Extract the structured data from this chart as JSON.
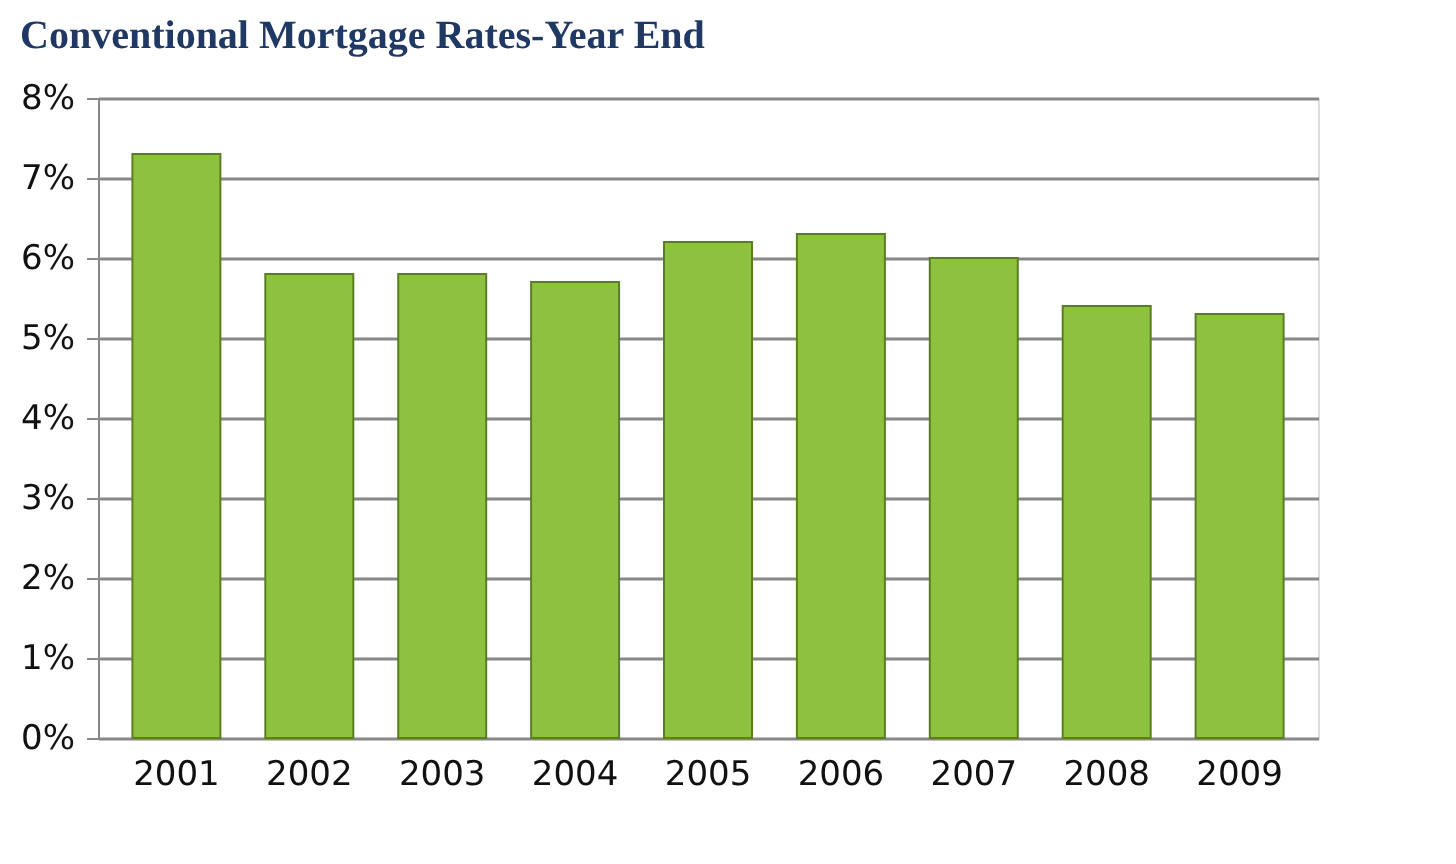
{
  "chart_data": {
    "type": "bar",
    "title": "Conventional Mortgage Rates-Year End",
    "categories": [
      "2001",
      "2002",
      "2003",
      "2004",
      "2005",
      "2006",
      "2007",
      "2008",
      "2009"
    ],
    "values": [
      7.3,
      5.8,
      5.8,
      5.7,
      6.2,
      6.3,
      6.0,
      5.4,
      5.3
    ],
    "color": "#8dc13f",
    "ylim": [
      0,
      8
    ],
    "yticks": [
      {
        "value": 0,
        "label": "0%"
      },
      {
        "value": 1,
        "label": "1%"
      },
      {
        "value": 2,
        "label": "2%"
      },
      {
        "value": 3,
        "label": "3%"
      },
      {
        "value": 4,
        "label": "4%"
      },
      {
        "value": 5,
        "label": "5%"
      },
      {
        "value": 6,
        "label": "6%"
      },
      {
        "value": 7,
        "label": "7%"
      },
      {
        "value": 8,
        "label": "8%"
      }
    ],
    "grid": "y"
  }
}
